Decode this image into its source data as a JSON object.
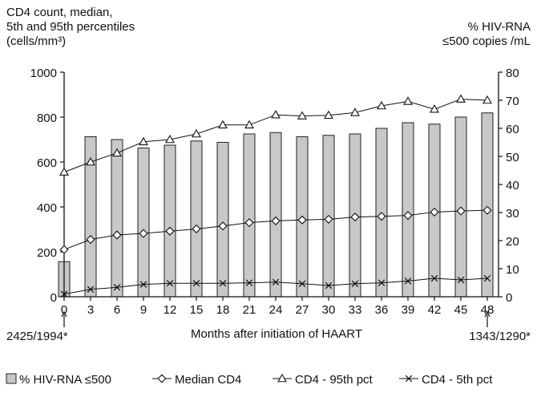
{
  "chart_data": {
    "type": "bar+line",
    "title": "",
    "ylabel_left_lines": [
      "CD4 count, median,",
      "5th and 95th percentiles",
      "(cells/mm³)"
    ],
    "ylabel_right_lines": [
      "% HIV-RNA",
      "≤500 copies /mL"
    ],
    "xlabel": "Months after initiation of HAART",
    "x": [
      0,
      3,
      6,
      9,
      12,
      15,
      18,
      21,
      24,
      27,
      30,
      33,
      36,
      39,
      42,
      45,
      48
    ],
    "x_tick_labels": [
      "0",
      "3",
      "6",
      "9",
      "12",
      "15",
      "18",
      "21",
      "24",
      "27",
      "30",
      "33",
      "36",
      "39",
      "42",
      "45",
      "48"
    ],
    "ylim_left": [
      0,
      1000
    ],
    "yticks_left": [
      "0",
      "200",
      "400",
      "600",
      "800",
      "1000"
    ],
    "ylim_right": [
      0,
      80
    ],
    "yticks_right": [
      "0",
      "10",
      "20",
      "30",
      "40",
      "50",
      "60",
      "70",
      "80"
    ],
    "series": [
      {
        "name": "% HIV-RNA ≤500",
        "kind": "bar",
        "axis": "right",
        "color": "#c8c8c8",
        "values": [
          12.5,
          57,
          56,
          53,
          54,
          55.5,
          55,
          58,
          58.5,
          57,
          57.5,
          58,
          60,
          62,
          61.5,
          64,
          65.5
        ]
      },
      {
        "name": "Median CD4",
        "kind": "line",
        "marker": "diamond",
        "axis": "left",
        "values": [
          210,
          255,
          275,
          282,
          292,
          302,
          315,
          330,
          338,
          342,
          345,
          355,
          358,
          362,
          377,
          382,
          385
        ]
      },
      {
        "name": "CD4 - 95th pct",
        "kind": "line",
        "marker": "triangle",
        "axis": "left",
        "values": [
          555,
          600,
          640,
          690,
          700,
          725,
          765,
          765,
          810,
          805,
          808,
          820,
          850,
          870,
          835,
          880,
          875
        ]
      },
      {
        "name": "CD4 - 5th pct",
        "kind": "line",
        "marker": "x",
        "axis": "left",
        "values": [
          12,
          33,
          42,
          55,
          60,
          60,
          60,
          62,
          65,
          58,
          50,
          58,
          62,
          70,
          82,
          75,
          82
        ]
      }
    ],
    "annotations": [
      {
        "text": "2425/1994*",
        "at_x": 0
      },
      {
        "text": "1343/1290*",
        "at_x": 48
      }
    ],
    "legend_position": "bottom",
    "grid": false
  }
}
